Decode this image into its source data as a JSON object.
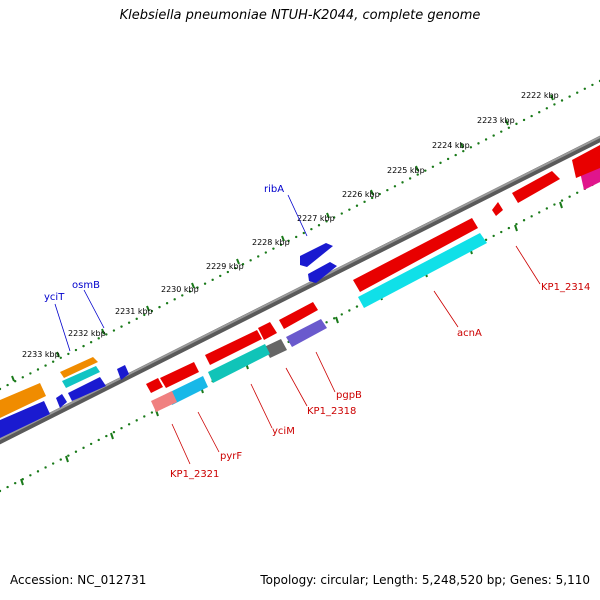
{
  "title": "Klebsiella pneumoniae NTUH-K2044, complete genome",
  "footer": {
    "accession": "Accession: NC_012731",
    "summary": "Topology: circular; Length: 5,248,520 bp; Genes: 5,110"
  },
  "colors": {
    "backbone": "#777777",
    "tick": "#1a7a1a",
    "forward_label": "#0000cc",
    "reverse_label": "#cc0000"
  },
  "axis": {
    "labels": [
      "2222 kbp",
      "2223 kbp",
      "2224 kbp",
      "2225 kbp",
      "2226 kbp",
      "2227 kbp",
      "2228 kbp",
      "2229 kbp",
      "2230 kbp",
      "2231 kbp",
      "2232 kbp",
      "2233 kbp"
    ]
  },
  "gene_labels": {
    "forward": [
      "ribA",
      "osmB",
      "yciT"
    ],
    "reverse": [
      "KP1_2314",
      "acnA",
      "pgpB",
      "KP1_2318",
      "yciM",
      "pyrF",
      "KP1_2321"
    ]
  }
}
